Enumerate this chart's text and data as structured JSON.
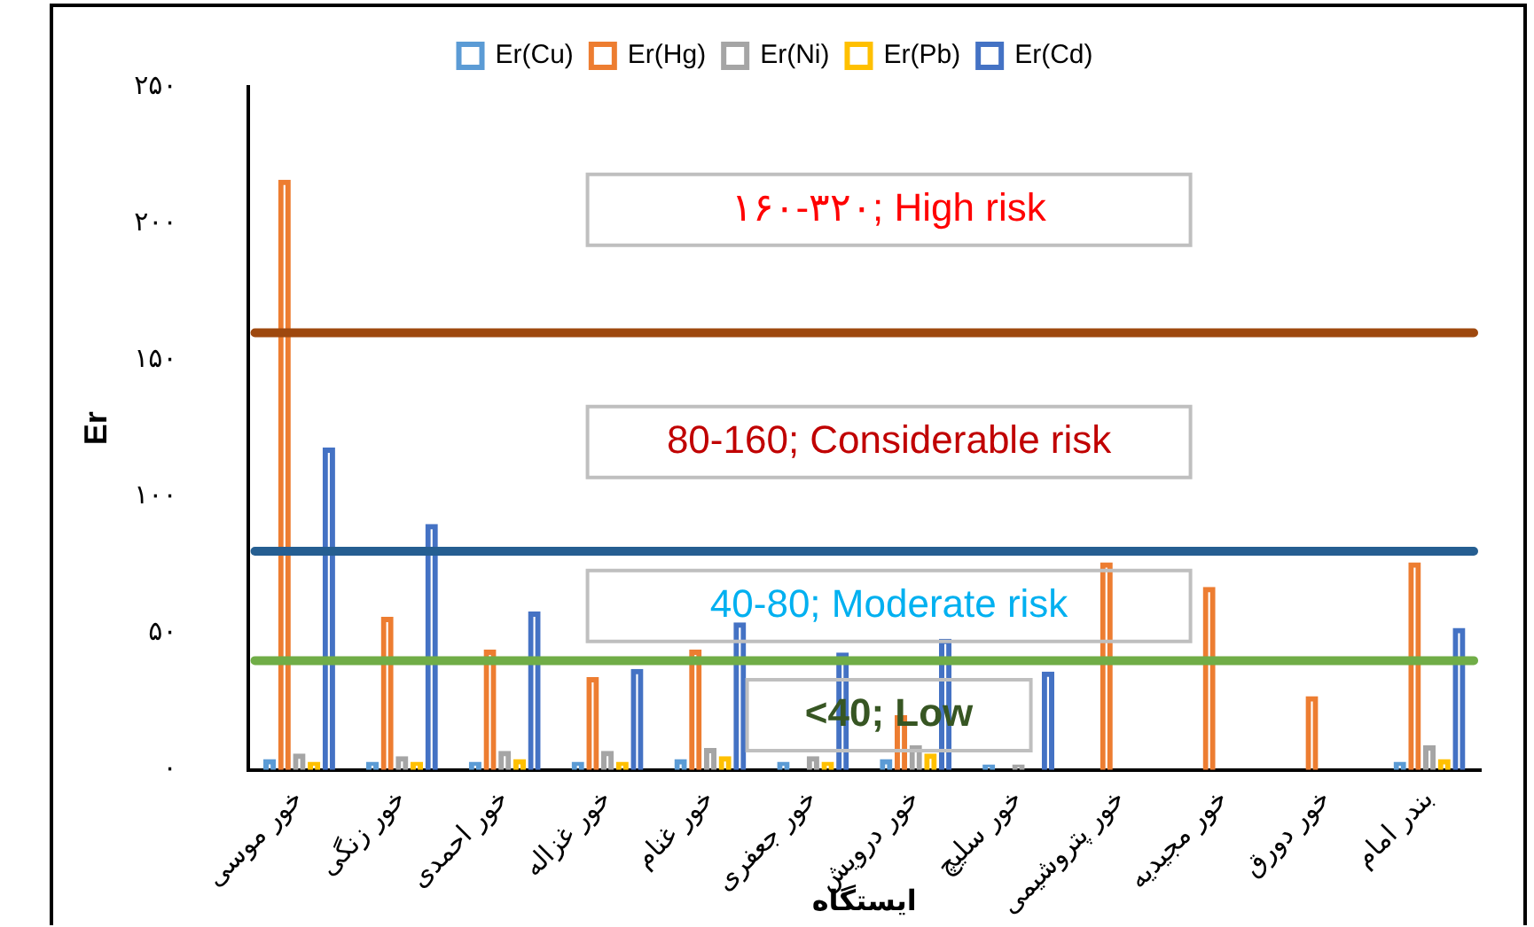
{
  "chart_data": {
    "type": "bar",
    "xlabel": "ایستگاه",
    "ylabel": "Er",
    "categories": [
      "خور موسی",
      "خور زنگی",
      "خور احمدی",
      "خور غزاله",
      "خور غنام",
      "خور جعفری",
      "خور درویش",
      "خور سلیچ",
      "خور پتروشیمی",
      "خور مجیدیه",
      "خور دورق",
      "بندر امام"
    ],
    "series": [
      {
        "name": "Er(Cu)",
        "color": "#5b9bd5",
        "values": [
          4,
          3,
          3,
          3,
          4,
          3,
          4,
          2,
          null,
          null,
          null,
          3
        ]
      },
      {
        "name": "Er(Hg)",
        "color": "#ed7d31",
        "values": [
          216,
          56,
          44,
          34,
          44,
          null,
          20,
          null,
          76,
          67,
          27,
          76
        ]
      },
      {
        "name": "Er(Ni)",
        "color": "#a5a5a5",
        "values": [
          6,
          5,
          7,
          7,
          8,
          5,
          9,
          2,
          null,
          null,
          null,
          9
        ]
      },
      {
        "name": "Er(Pb)",
        "color": "#ffc000",
        "values": [
          3,
          3,
          4,
          3,
          5,
          3,
          6,
          null,
          null,
          null,
          null,
          4
        ]
      },
      {
        "name": "Er(Cd)",
        "color": "#4472c4",
        "values": [
          118,
          90,
          58,
          37,
          54,
          43,
          48,
          36,
          null,
          null,
          null,
          52
        ]
      }
    ],
    "ylim": [
      0,
      250
    ],
    "yticks": [
      {
        "value": 0,
        "label": "۰"
      },
      {
        "value": 50,
        "label": "۵۰"
      },
      {
        "value": 100,
        "label": "۱۰۰"
      },
      {
        "value": 150,
        "label": "۱۵۰"
      },
      {
        "value": 200,
        "label": "۲۰۰"
      },
      {
        "value": 250,
        "label": "۲۵۰"
      }
    ],
    "ref_lines": [
      {
        "axis": "y",
        "value": 160,
        "label": "۱۶۰-۳۲۰; High risk",
        "color": "#9e480e"
      },
      {
        "axis": "y",
        "value": 80,
        "label": "80-160; Considerable risk",
        "color": "#255e91"
      },
      {
        "axis": "y",
        "value": 40,
        "label": "40-80; Moderate risk",
        "color": "#70ad47"
      }
    ],
    "annotations": [
      "<40; Low"
    ],
    "grid": false,
    "legend": "top"
  }
}
